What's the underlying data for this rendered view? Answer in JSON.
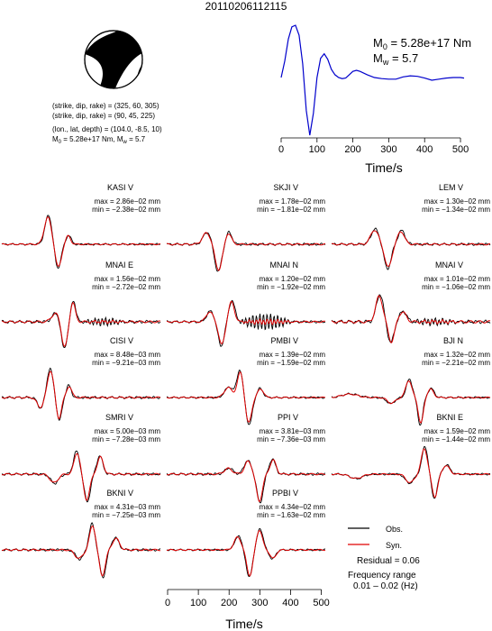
{
  "title": "20110206112115",
  "source_info": {
    "lines": [
      "(strike, dip, rake) = (325, 60, 305)",
      "(strike, dip, rake) = (90, 45, 225)",
      "(lon., lat, depth) = (104.0, -8.5, 10)"
    ],
    "moment_line": {
      "m0_label": "M",
      "m0_sub": "0",
      "m0_val": " = 5.28e+17 Nm, M",
      "mw_sub": "w",
      "mw_val": " = 5.7"
    }
  },
  "stf_annotation": {
    "m0_label": "M",
    "m0_sub": "0",
    "m0_val": " = 5.28e+17 Nm",
    "mw_label": "M",
    "mw_sub": "w",
    "mw_val": " = 5.7"
  },
  "legend": {
    "obs": "Obs.",
    "syn": "Syn.",
    "residual": "Residual = 0.06",
    "freq_title": "Frequency range",
    "freq_range": "0.01 – 0.02 (Hz)"
  },
  "colors": {
    "obs": "#000000",
    "syn": "#e00000",
    "stf": "#0000cc"
  },
  "chart_data": [
    {
      "type": "line",
      "name": "source-time-function",
      "xlabel": "Time/s",
      "xlim": [
        0,
        510
      ],
      "xticks": [
        0,
        100,
        200,
        300,
        400,
        500
      ],
      "x": [
        0,
        10,
        20,
        30,
        40,
        50,
        60,
        70,
        80,
        90,
        100,
        110,
        120,
        130,
        140,
        150,
        160,
        170,
        180,
        190,
        200,
        210,
        220,
        240,
        260,
        280,
        300,
        320,
        340,
        360,
        380,
        400,
        420,
        440,
        460,
        480,
        500,
        510
      ],
      "values": [
        0.05,
        0.35,
        0.75,
        0.97,
        1.0,
        0.82,
        0.3,
        -0.55,
        -1.0,
        -0.6,
        0.05,
        0.4,
        0.48,
        0.38,
        0.2,
        0.1,
        0.05,
        0.03,
        0.04,
        0.1,
        0.16,
        0.18,
        0.16,
        0.1,
        0.05,
        0.03,
        0.02,
        0.02,
        0.06,
        0.08,
        0.07,
        0.04,
        0.0,
        0.02,
        0.04,
        0.05,
        0.05,
        0.04
      ]
    },
    {
      "type": "line",
      "name": "waveform-fits",
      "xlabel": "Time/s",
      "xlim": [
        0,
        510
      ],
      "xticks": [
        0,
        100,
        200,
        300,
        400,
        500
      ],
      "series": [
        "Obs.",
        "Syn."
      ],
      "stations": [
        {
          "label": "KASI V",
          "max": "max = 2.86e−02 mm",
          "min": "min = −2.38e−02 mm",
          "col": 0,
          "row": 0,
          "waves": [
            [
              150,
              35,
              0.95
            ],
            [
              180,
              30,
              -0.8
            ],
            [
              215,
              25,
              0.3
            ]
          ],
          "noise": 0.03
        },
        {
          "label": "SKJI V",
          "max": "max = 1.78e−02 mm",
          "min": "min = −1.81e−02 mm",
          "col": 1,
          "row": 0,
          "waves": [
            [
              130,
              40,
              0.4
            ],
            [
              165,
              35,
              -0.9
            ],
            [
              200,
              30,
              0.4
            ]
          ],
          "noise": 0.04
        },
        {
          "label": "LEM V",
          "max": "max = 1.30e−02 mm",
          "min": "min = −1.34e−02 mm",
          "col": 2,
          "row": 0,
          "waves": [
            [
              140,
              40,
              0.5
            ],
            [
              180,
              35,
              -0.8
            ],
            [
              225,
              35,
              0.45
            ]
          ],
          "noise": 0.04
        },
        {
          "label": "MNAI E",
          "max": "max = 1.56e−02 mm",
          "min": "min = −2.72e−02 mm",
          "col": 0,
          "row": 1,
          "waves": [
            [
              175,
              40,
              0.3
            ],
            [
              200,
              30,
              -0.9
            ],
            [
              230,
              25,
              0.7
            ]
          ],
          "noise": 0.05,
          "ripple": [
            260,
            400,
            0.1
          ]
        },
        {
          "label": "MNAI N",
          "max": "max = 1.20e−02 mm",
          "min": "min = −1.92e−02 mm",
          "col": 1,
          "row": 1,
          "waves": [
            [
              140,
              35,
              0.35
            ],
            [
              175,
              30,
              -0.8
            ],
            [
              210,
              30,
              0.7
            ]
          ],
          "noise": 0.04,
          "ripple": [
            230,
            410,
            0.25
          ]
        },
        {
          "label": "MNAI V",
          "max": "max = 1.01e−02 mm",
          "min": "min = −1.06e−02 mm",
          "col": 2,
          "row": 1,
          "waves": [
            [
              155,
              35,
              0.9
            ],
            [
              190,
              30,
              -0.7
            ],
            [
              230,
              35,
              0.35
            ]
          ],
          "noise": 0.06,
          "ripple": [
            260,
            420,
            0.12
          ]
        },
        {
          "label": "CISI V",
          "max": "max = 8.48e−03 mm",
          "min": "min = −9.21e−03 mm",
          "col": 0,
          "row": 2,
          "waves": [
            [
              125,
              30,
              -0.35
            ],
            [
              155,
              30,
              0.95
            ],
            [
              185,
              25,
              -0.75
            ],
            [
              215,
              25,
              0.4
            ]
          ],
          "noise": 0.04
        },
        {
          "label": "PMBI V",
          "max": "max = 1.39e−02 mm",
          "min": "min = −1.59e−02 mm",
          "col": 1,
          "row": 2,
          "waves": [
            [
              200,
              40,
              0.35
            ],
            [
              235,
              30,
              0.9
            ],
            [
              265,
              30,
              -0.9
            ],
            [
              300,
              30,
              0.3
            ]
          ],
          "noise": 0.03
        },
        {
          "label": "BJI N",
          "max": "max = 1.32e−02 mm",
          "min": "min = −2.21e−02 mm",
          "col": 2,
          "row": 2,
          "waves": [
            [
              60,
              80,
              0.12
            ],
            [
              190,
              40,
              -0.2
            ],
            [
              250,
              30,
              0.6
            ],
            [
              285,
              25,
              -0.9
            ],
            [
              320,
              30,
              0.3
            ]
          ],
          "noise": 0.03
        },
        {
          "label": "SMRI V",
          "max": "max = 5.00e−03 mm",
          "min": "min = −7.28e−03 mm",
          "col": 0,
          "row": 3,
          "waves": [
            [
              170,
              40,
              -0.3
            ],
            [
              240,
              30,
              0.75
            ],
            [
              275,
              30,
              -0.9
            ],
            [
              315,
              30,
              0.6
            ]
          ],
          "noise": 0.04
        },
        {
          "label": "PPI V",
          "max": "max = 3.81e−03 mm",
          "min": "min = −7.36e−03 mm",
          "col": 1,
          "row": 3,
          "waves": [
            [
              200,
              40,
              0.2
            ],
            [
              260,
              35,
              0.45
            ],
            [
              300,
              30,
              -0.95
            ],
            [
              340,
              30,
              0.5
            ]
          ],
          "noise": 0.04
        },
        {
          "label": "BKNI E",
          "max": "max = 1.59e−02 mm",
          "min": "min = −1.44e−02 mm",
          "col": 2,
          "row": 3,
          "waves": [
            [
              80,
              60,
              -0.15
            ],
            [
              250,
              40,
              -0.3
            ],
            [
              300,
              30,
              0.9
            ],
            [
              330,
              28,
              -0.8
            ],
            [
              370,
              35,
              0.3
            ]
          ],
          "noise": 0.03
        },
        {
          "label": "BKNI V",
          "max": "max = 4.31e−03 mm",
          "min": "min = −7.25e−03 mm",
          "col": 0,
          "row": 4,
          "waves": [
            [
              250,
              40,
              -0.3
            ],
            [
              290,
              30,
              0.85
            ],
            [
              325,
              30,
              -0.9
            ],
            [
              365,
              35,
              0.4
            ]
          ],
          "noise": 0.04
        },
        {
          "label": "PPBI V",
          "max": "max = 4.34e−02 mm",
          "min": "min = −1.63e−02 mm",
          "col": 1,
          "row": 4,
          "waves": [
            [
              230,
              35,
              0.45
            ],
            [
              265,
              30,
              -0.9
            ],
            [
              300,
              30,
              0.7
            ],
            [
              340,
              30,
              -0.3
            ]
          ],
          "noise": 0.03
        }
      ]
    }
  ]
}
